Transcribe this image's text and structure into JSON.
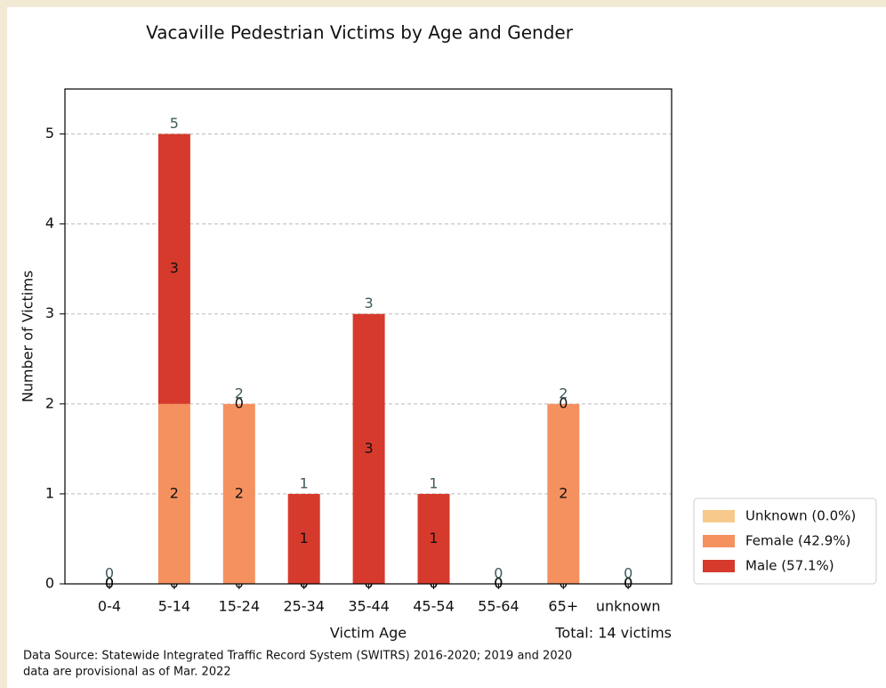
{
  "chart_data": {
    "type": "stacked_bar",
    "title": "Vacaville Pedestrian Victims by Age and Gender",
    "x_label": "Victim Age",
    "y_label": "Number of Victims",
    "categories": [
      "0-4",
      "5-14",
      "15-24",
      "25-34",
      "35-44",
      "45-54",
      "55-64",
      "65+",
      "unknown"
    ],
    "series": [
      {
        "name": "Unknown (0.0%)",
        "color": "#f7c98b",
        "values": [
          0,
          0,
          0,
          0,
          0,
          0,
          0,
          0,
          0
        ]
      },
      {
        "name": "Female (42.9%)",
        "color": "#f4915f",
        "values": [
          0,
          2,
          2,
          0,
          0,
          0,
          0,
          2,
          0
        ]
      },
      {
        "name": "Male (57.1%)",
        "color": "#d63a2c",
        "values": [
          0,
          3,
          0,
          1,
          3,
          1,
          0,
          0,
          0
        ]
      }
    ],
    "totals": [
      0,
      5,
      2,
      1,
      3,
      1,
      0,
      2,
      0
    ],
    "ylim": [
      0,
      5.5
    ],
    "yticks": [
      0,
      1,
      2,
      3,
      4,
      5
    ],
    "grid": true,
    "legend": "right",
    "annotation": "Total: 14 victims",
    "source": [
      "Data Source: Statewide Integrated Traffic Record System (SWITRS) 2016-2020; 2019 and 2020",
      "data are provisional as of Mar. 2022"
    ]
  }
}
